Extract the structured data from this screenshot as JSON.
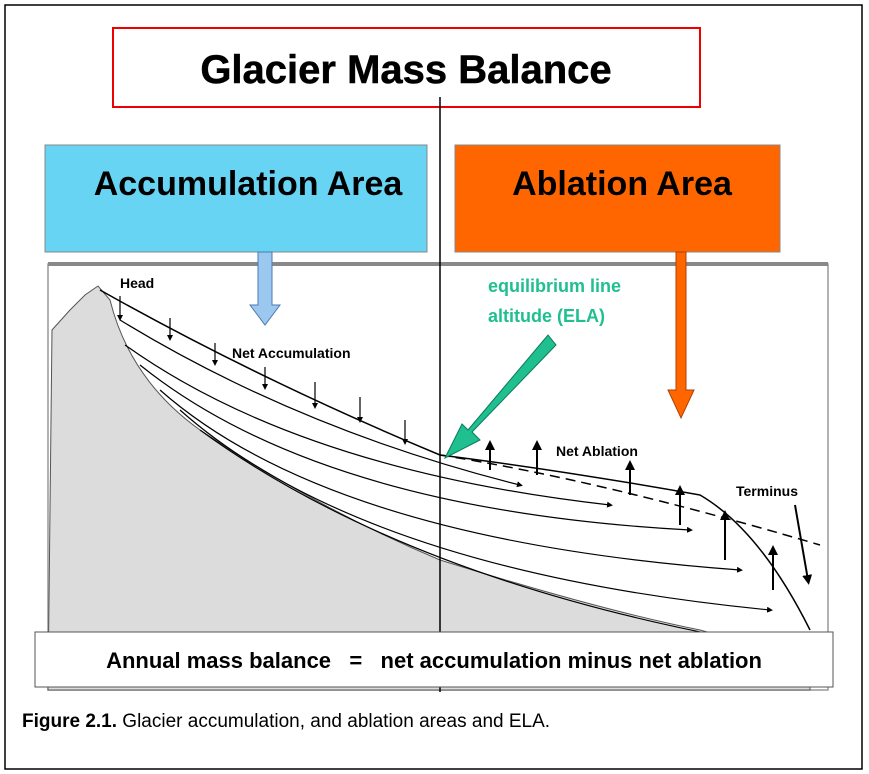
{
  "title": "Glacier Mass Balance",
  "zones": {
    "accumulation": "Accumulation Area",
    "ablation": "Ablation Area"
  },
  "labels": {
    "head": "Head",
    "net_accumulation": "Net Accumulation",
    "ela_line1": "equilibrium line",
    "ela_line2": "altitude  (ELA)",
    "net_ablation": "Net Ablation",
    "terminus": "Terminus"
  },
  "equation": "Annual mass balance   =   net accumulation minus net ablation",
  "caption": {
    "label": "Figure 2.1.",
    "text": " Glacier accumulation, and ablation areas and ELA."
  }
}
